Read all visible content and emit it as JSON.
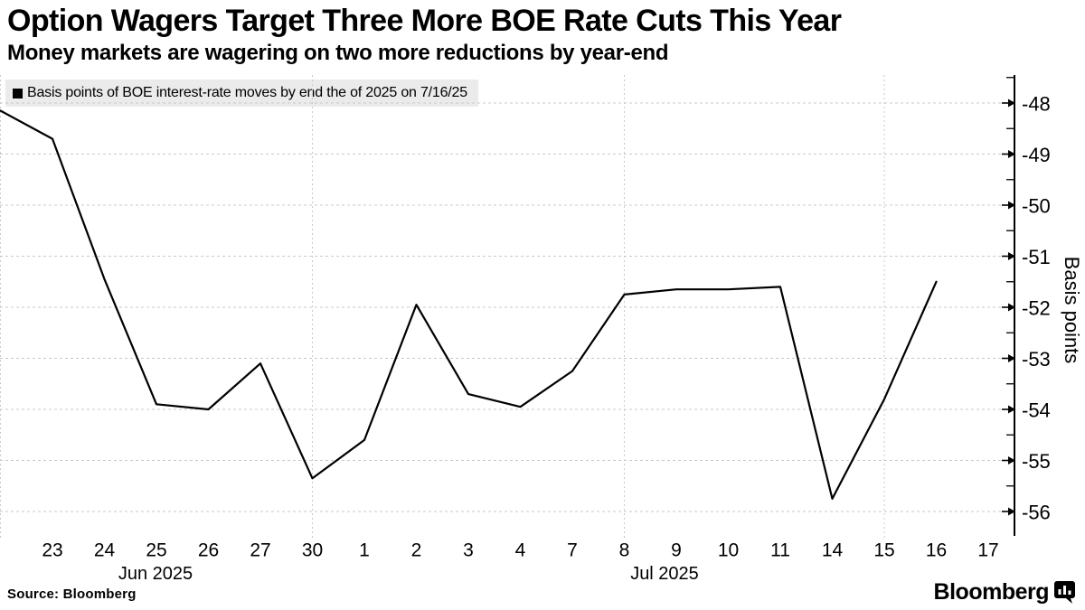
{
  "header": {
    "title": "Option Wagers Target Three More BOE Rate Cuts This Year",
    "subtitle": "Money markets are wagering on two more reductions by year-end"
  },
  "legend": {
    "label": "Basis points of BOE interest-rate moves by end the of 2025 on 7/16/25"
  },
  "footer": {
    "source": "Source: Bloomberg",
    "brand": "Bloomberg"
  },
  "chart_data": {
    "type": "line",
    "title": "Option Wagers Target Three More BOE Rate Cuts This Year",
    "subtitle": "Money markets are wagering on two more reductions by year-end",
    "ylabel": "Basis points",
    "xlabel": "",
    "grid": true,
    "legend_position": "top-left",
    "ylim": [
      -56.5,
      -47.4
    ],
    "yticks": [
      -48,
      -49,
      -50,
      -51,
      -52,
      -53,
      -54,
      -55,
      -56
    ],
    "x_day_labels": [
      "23",
      "24",
      "25",
      "26",
      "27",
      "30",
      "1",
      "2",
      "3",
      "4",
      "7",
      "8",
      "9",
      "10",
      "11",
      "14",
      "15",
      "16",
      "17"
    ],
    "month_labels": [
      "Jun 2025",
      "Jul 2025"
    ],
    "v_gridlines": [
      "Jun 20",
      "Jun 30",
      "Jul 8",
      "Jul 15"
    ],
    "series": [
      {
        "name": "Basis points of BOE interest-rate moves by end the of 2025 on 7/16/25",
        "points": [
          {
            "date": "Jun 20",
            "value": -48.15
          },
          {
            "date": "Jun 23",
            "value": -48.7
          },
          {
            "date": "Jun 24",
            "value": -51.45
          },
          {
            "date": "Jun 25",
            "value": -53.9
          },
          {
            "date": "Jun 26",
            "value": -54.0
          },
          {
            "date": "Jun 27",
            "value": -53.1
          },
          {
            "date": "Jun 30",
            "value": -55.35
          },
          {
            "date": "Jul 1",
            "value": -54.6
          },
          {
            "date": "Jul 2",
            "value": -51.95
          },
          {
            "date": "Jul 3",
            "value": -53.7
          },
          {
            "date": "Jul 4",
            "value": -53.95
          },
          {
            "date": "Jul 7",
            "value": -53.25
          },
          {
            "date": "Jul 8",
            "value": -51.75
          },
          {
            "date": "Jul 9",
            "value": -51.65
          },
          {
            "date": "Jul 10",
            "value": -51.65
          },
          {
            "date": "Jul 11",
            "value": -51.6
          },
          {
            "date": "Jul 14",
            "value": -55.75
          },
          {
            "date": "Jul 15",
            "value": -53.8
          },
          {
            "date": "Jul 16",
            "value": -51.5
          }
        ]
      }
    ]
  }
}
